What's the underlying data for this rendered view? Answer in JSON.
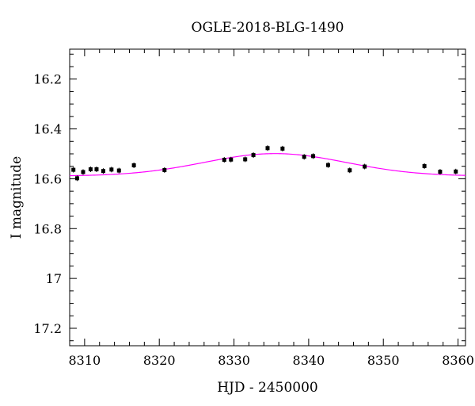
{
  "chart_data": {
    "type": "scatter",
    "title": "OGLE-2018-BLG-1490",
    "xlabel": "HJD - 2450000",
    "ylabel": "I magnitude",
    "xlim": [
      8308,
      8361
    ],
    "ylim": [
      17.27,
      16.08
    ],
    "y_inverted": true,
    "x_ticks": [
      8310,
      8320,
      8330,
      8340,
      8350,
      8360
    ],
    "y_ticks": [
      16.2,
      16.4,
      16.6,
      16.8,
      17,
      17.2
    ],
    "x_tick_labels": [
      "8310",
      "8320",
      "8330",
      "8340",
      "8350",
      "8360"
    ],
    "y_tick_labels": [
      "16.2",
      "16.4",
      "16.6",
      "16.8",
      "17",
      "17.2"
    ],
    "grid": false,
    "colors": {
      "points": "#000000",
      "model": "#ff00ff"
    },
    "series": [
      {
        "kind": "points",
        "x": [
          8308.5,
          8309.0,
          8309.8,
          8310.8,
          8311.6,
          8312.5,
          8313.6,
          8314.6,
          8316.6,
          8320.7,
          8328.7,
          8329.6,
          8331.5,
          8332.6,
          8334.5,
          8336.5,
          8339.4,
          8340.6,
          8342.6,
          8345.5,
          8347.5,
          8355.5,
          8357.6,
          8359.7
        ],
        "y": [
          16.564,
          16.598,
          16.573,
          16.562,
          16.562,
          16.569,
          16.563,
          16.567,
          16.546,
          16.565,
          16.524,
          16.523,
          16.522,
          16.505,
          16.477,
          16.479,
          16.512,
          16.509,
          16.545,
          16.566,
          16.551,
          16.549,
          16.572,
          16.571
        ]
      },
      {
        "kind": "model",
        "t0": 8335.5,
        "baseline": 16.589,
        "amplitude": 0.09,
        "width": 9.5
      }
    ]
  }
}
